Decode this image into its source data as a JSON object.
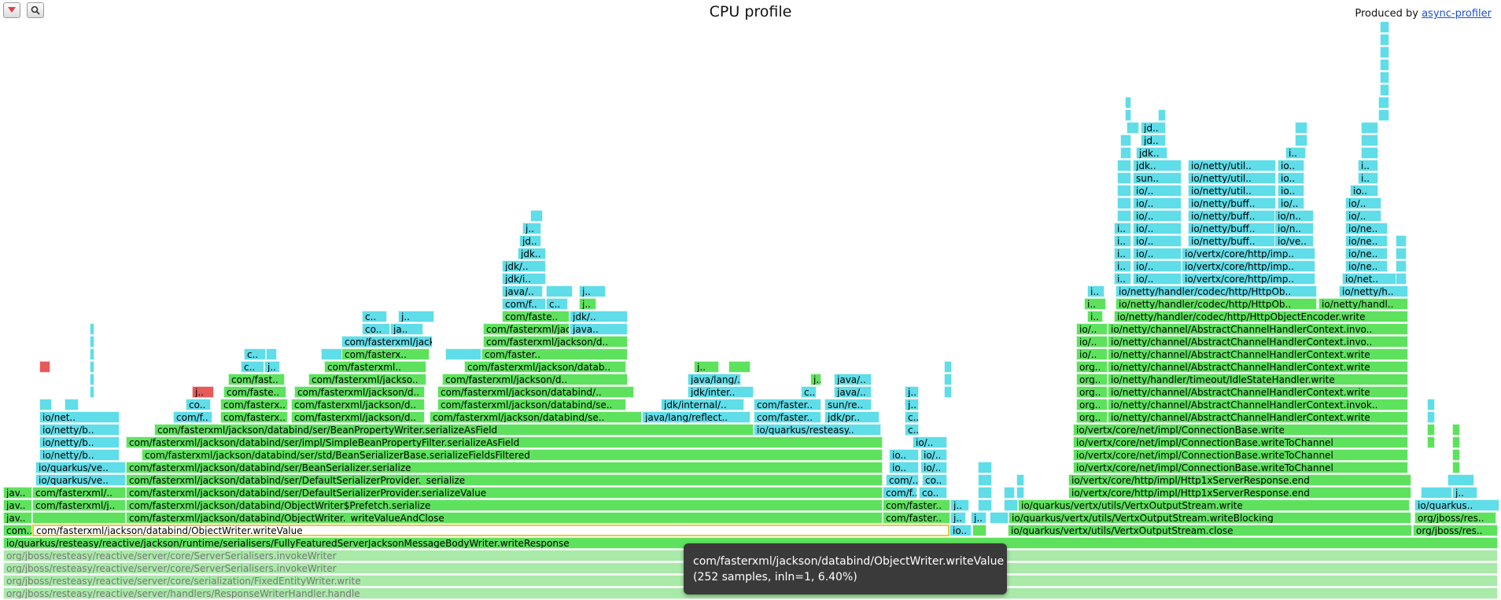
{
  "toolbar": {
    "reverse_icon": "reverse-triangle-icon",
    "search_icon": "magnifier-search-icon"
  },
  "header": {
    "title": "CPU profile",
    "produced_by": "Produced by",
    "produced_link": "async-profiler"
  },
  "colors": {
    "java": "#5ee25e",
    "inlined": "#5fdde8",
    "native": "#e65a5a",
    "dimmed": "#a9eaa9",
    "highlight_border": "#e5cf2a",
    "tooltip_bg": "#3a3a3a"
  },
  "tooltip": {
    "line1": "com/fasterxml/jackson/databind/ObjectWriter.writeValue",
    "line2": "(252 samples, inln=1, 6.40%)"
  },
  "frames": {
    "f_handler": "org/jboss/resteasy/reactive/server/handlers/ResponseWriterHandler.handle",
    "f_fixed": "org/jboss/resteasy/reactive/server/core/serialization/FixedEntityWriter.write",
    "f_ser2": "org/jboss/resteasy/reactive/server/core/ServerSerialisers.invokeWriter",
    "f_ser1": "org/jboss/resteasy/reactive/server/core/ServerSerialisers.invokeWriter",
    "f_writeResponse": "io/quarkus/resteasy/reactive/jackson/runtime/serialisers/FullyFeaturedServerJacksonMessageBodyWriter.writeResponse",
    "f_com": "com..",
    "f_writeValue": "com/fasterxml/jackson/databind/ObjectWriter.writeValue",
    "f_io_s1": "io..",
    "f_close": "io/quarkus/vertx/utils/VertxOutputStream.close",
    "f_org_jboss": "org/jboss/res..",
    "f_jav1": "jav..",
    "f_writeValueAndClose": "com/fasterxml/jackson/databind/ObjectWriter._writeValueAndClose",
    "f_comfaster_a": "com/faster..",
    "f_j1": "j..",
    "f_j2": "j..",
    "f_writeBlocking": "io/quarkus/vertx/utils/VertxOutputStream.writeBlocking",
    "f_org_jboss2": "org/jboss/res..",
    "f_jav2": "jav..",
    "f_cfj": "com/fasterxml/j..",
    "f_prefetch": "com/fasterxml/jackson/databind/ObjectWriter$Prefetch.serialize",
    "f_comfaster_b": "com/faster..",
    "f_j3": "j..",
    "f_vos_write": "io/quarkus/vertx/utils/VertxOutputStream.write",
    "f_ioquarkus": "io/quarkus..",
    "f_jav3": "jav..",
    "f_comfasterxml_s": "com/fasterxml/..",
    "f_serializeValue": "com/fasterxml/jackson/databind/ser/DefaultSerializerProvider.serializeValue",
    "f_comf1": "com/f..",
    "f_co1": "co..",
    "f_end1": "io/vertx/core/http/impl/Http1xServerResponse.end",
    "f_j4": "j..",
    "f_ioqv1": "io/quarkus/ve..",
    "f_serialize_": "com/fasterxml/jackson/databind/ser/DefaultSerializerProvider._serialize",
    "f_comf2": "com/..",
    "f_co2": "co..",
    "f_end2": "io/vertx/core/http/impl/Http1xServerResponse.end",
    "f_ioqv2": "io/quarkus/ve..",
    "f_beanSerialize": "com/fasterxml/jackson/databind/ser/BeanSerializer.serialize",
    "f_io1": "io..",
    "f_io2": "io/..",
    "f_wtc1": "io/vertx/core/net/impl/ConnectionBase.writeToChannel",
    "f_nettyb1": "io/netty/b..",
    "f_serializeFieldsFiltered": "com/fasterxml/jackson/databind/ser/std/BeanSerializerBase.serializeFieldsFiltered",
    "f_io3": "io..",
    "f_io4": "io/..",
    "f_wtc2": "io/vertx/core/net/impl/ConnectionBase.writeToChannel",
    "f_nettyb2": "io/netty/b..",
    "f_serializeAsField2": "com/fasterxml/jackson/databind/ser/impl/SimpleBeanPropertyFilter.serializeAsField",
    "f_io5": "io/..",
    "f_wtc3": "io/vertx/core/net/impl/ConnectionBase.writeToChannel",
    "f_nettyb3": "io/netty/b..",
    "f_serializeAsField1": "com/fasterxml/jackson/databind/ser/BeanPropertyWriter.serializeAsField",
    "f_quarkusresteasy": "io/quarkus/resteasy..",
    "f_c1": "c..",
    "f_cb_write1": "io/vertx/core/net/impl/ConnectionBase.write",
    "f_ionet": "io/net..",
    "f_comf3": "com/f..",
    "f_comfasterx1": "com/fasterx..",
    "f_comfasterxml_d1": "com/fasterxml/jackson/d..",
    "f_comfasterxml_se1": "com/fasterxml/jackson/databind/se..",
    "f_reflect": "java/lang/reflect..",
    "f_comfaster_c": "com/faster..",
    "f_jdkpr": "jdk/pr..",
    "f_c2": "c..",
    "f_org1": "org..",
    "f_achc_write1": "io/netty/channel/AbstractChannelHandlerContext.write",
    "f_co3": "co..",
    "f_comfasterx2": "com/fasterx..",
    "f_comfasterxml_d2": "com/fasterxml/jackson/d..",
    "f_comfasterxml_se2": "com/fasterxml/jackson/databind/se..",
    "f_jdkinternal": "jdk/internal/..",
    "f_comfaster_d": "com/faster..",
    "f_sunre": "sun/re..",
    "f_j5": "j..",
    "f_org2": "org..",
    "f_achc_invok": "io/netty/channel/AbstractChannelHandlerContext.invok..",
    "f_j6": "j..",
    "f_comfaste1": "com/faste..",
    "f_comfasterxml_d3": "com/fasterxml/jackson/d..",
    "f_comfasterxml_d4": "com/fasterxml/jackson/databind/..",
    "f_jdkinter": "jdk/inter..",
    "f_c3": "c..",
    "f_java1": "java/..",
    "f_j7": "j..",
    "f_org3": "org..",
    "f_achc_write2": "io/netty/channel/AbstractChannelHandlerContext.write",
    "f_comfast1": "com/fast..",
    "f_comfasterxml_jackso1": "com/fasterxml/jackso..",
    "f_comfasterxml_jackson_d": "com/fasterxml/jackson/d..",
    "f_javalang": "java/lang/..",
    "f_j8": "j..",
    "f_java2": "java/..",
    "f_org4": "org..",
    "f_idlestate": "io/netty/handler/timeout/IdleStateHandler.write",
    "f_c4": "c..",
    "f_j9": "j..",
    "f_comfasterxml_1": "com/fasterxml..",
    "f_comfasterxml_jackson_db": "com/fasterxml/jackson/datab..",
    "f_org5": "org..",
    "f_achc_write3": "io/netty/channel/AbstractChannelHandlerContext.write",
    "f_c5": "c..",
    "f_j10": "j..",
    "f_comfasterx3": "com/fasterx..",
    "f_comfaster_e": "com/faster..",
    "f_comfasterxml_jackson_d2": "com/fasterxml/jackson/d..",
    "f_io6": "io/..",
    "f_achc_write4": "io/netty/channel/AbstractChannelHandlerContext.write",
    "f_c6": "c..",
    "f_ja1": "ja..",
    "f_comfasterxml_jackso2": "com/fasterxml/jackso..",
    "f_java3": "java..",
    "f_io7": "io/..",
    "f_achc_invo": "io/netty/channel/AbstractChannelHandlerContext.invo..",
    "f_comfaste2": "com/faste..",
    "f_c7": "c..",
    "f_jdk1": "jdk/..",
    "f_io8": "io/..",
    "f_achc_invo2": "io/netty/channel/AbstractChannelHandlerContext.invo..",
    "f_comf4": "com/f..",
    "f_j11": "j..",
    "f_javax": "java/..",
    "f_j12": "j..",
    "f_i1": "i..",
    "f_httpobjectencoder": "io/netty/handler/codec/http/HttpObjectEncoder.write",
    "f_jdki": "jdk/i..",
    "f_i2": "i..",
    "f_httpob1": "io/netty/handler/codec/http/HttpOb..",
    "f_nettyhandl": "io/netty/handl..",
    "f_jdk2": "jdk/..",
    "f_i3": "i..",
    "f_httpob2": "io/netty/handler/codec/http/HttpOb..",
    "f_nettyh": "io/netty/h..",
    "f_jdk3": "jdk..",
    "f_i4": "i..",
    "f_io9": "io/..",
    "f_vertximp1": "io/vertx/core/http/imp..",
    "f_ionet1": "io/net..",
    "f_jd1": "jd..",
    "f_i5": "i..",
    "f_io10": "io/..",
    "f_vertximp2": "io/vertx/core/http/imp..",
    "f_ione1": "io/ne..",
    "f_j13": "j..",
    "f_i6": "i..",
    "f_io11": "io/..",
    "f_vertximp3": "io/vertx/core/http/imp..",
    "f_ione2": "io/ne..",
    "f_i7": "i..",
    "f_io12": "io/..",
    "f_nettybuff1": "io/netty/buff..",
    "f_iove": "io/ve..",
    "f_ione3": "io/ne..",
    "f_i8": "i..",
    "f_io13": "io/..",
    "f_nettybuff2": "io/netty/buff..",
    "f_ion1": "io/n..",
    "f_ione4": "io/ne..",
    "f_io14": "io/..",
    "f_nettybuff3": "io/netty/buff..",
    "f_ion2": "io/n..",
    "f_io15": "io/..",
    "f_io16": "io/..",
    "f_nettybuff4": "io/netty/buff..",
    "f_io17": "io/..",
    "f_io18": "io/..",
    "f_io19": "io/..",
    "f_nettyutil1": "io/netty/util..",
    "f_io20": "io..",
    "f_io21": "io..",
    "f_sun": "sun..",
    "f_nettyutil2": "io/netty/util..",
    "f_io22": "io..",
    "f_i9": "i..",
    "f_jdk4": "jdk..",
    "f_nettyutil3": "io/netty/util..",
    "f_io23": "io..",
    "f_i10": "i..",
    "f_jdk5": "jdk..",
    "f_i11": "i..",
    "f_jd2": "jd..",
    "f_jd3": "jd.."
  }
}
